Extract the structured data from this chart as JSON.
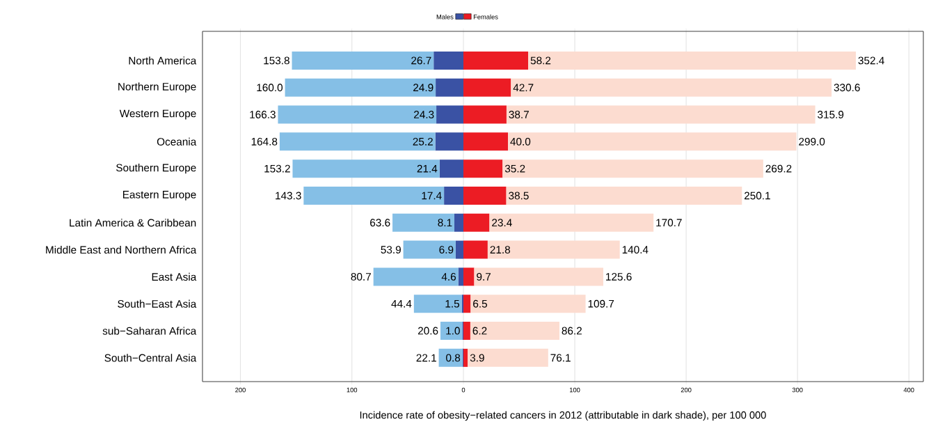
{
  "chart_data": [
    {
      "type": "bar",
      "orientation": "horizontal",
      "stacked": true,
      "categories": [
        "North America",
        "Northern Europe",
        "Western Europe",
        "Oceania",
        "Southern Europe",
        "Eastern Europe",
        "Latin America & Caribbean",
        "Middle East and Northern Africa",
        "East Asia",
        "South−East Asia",
        "sub−Saharan Africa",
        "South−Central Asia"
      ],
      "series": [
        {
          "name": "Males",
          "color": "#3a52a4",
          "values": [
            26.7,
            24.9,
            24.3,
            25.2,
            21.4,
            17.4,
            8.1,
            6.9,
            4.6,
            1.5,
            1.0,
            0.8
          ],
          "value_labels": [
            "26.7",
            "24.9",
            "24.3",
            "25.2",
            "21.4",
            "17.4",
            "8.1",
            "6.9",
            "4.6",
            "1.5",
            "1.0",
            "0.8"
          ]
        },
        {
          "color": "#85bfe6",
          "values": [
            127.1,
            135.1,
            142.0,
            139.6,
            131.8,
            125.9,
            55.5,
            47.0,
            76.1,
            42.9,
            19.6,
            21.3
          ]
        }
      ],
      "totals": [
        "153.8",
        "160.0",
        "166.3",
        "164.8",
        "153.2",
        "143.3",
        "63.6",
        "53.9",
        "80.7",
        "44.4",
        "20.6",
        "22.1"
      ],
      "xlim": [
        234,
        0
      ],
      "xticks": [
        200,
        100,
        0
      ],
      "grid": "x",
      "legend": "top"
    },
    {
      "type": "bar",
      "orientation": "horizontal",
      "stacked": true,
      "xlabel": "Incidence rate of obesity−related cancers in 2012 (attributable in dark shade), per 100 000",
      "categories": [
        null,
        null,
        null,
        null,
        null,
        null,
        null,
        null,
        null,
        null,
        null,
        null
      ],
      "series": [
        {
          "name": "Females",
          "color": "#ec1c24",
          "values": [
            58.2,
            42.7,
            38.7,
            40.0,
            35.2,
            38.5,
            23.4,
            21.8,
            9.7,
            6.5,
            6.2,
            3.9
          ],
          "value_labels": [
            "58.2",
            "42.7",
            "38.7",
            "40.0",
            "35.2",
            "38.5",
            "23.4",
            "21.8",
            "9.7",
            "6.5",
            "6.2",
            "3.9"
          ]
        },
        {
          "color": "#fcdcd0",
          "values": [
            294.2,
            287.9,
            277.2,
            259.0,
            234.0,
            211.6,
            147.3,
            118.6,
            115.9,
            103.2,
            80.0,
            72.2
          ]
        }
      ],
      "totals": [
        "352.4",
        "330.6",
        "315.9",
        "299.0",
        "269.2",
        "250.1",
        "170.7",
        "140.4",
        "125.6",
        "109.7",
        "86.2",
        "76.1"
      ],
      "xlim": [
        0,
        413
      ],
      "xticks": [
        100,
        200,
        300,
        400
      ],
      "tick_labels": "x",
      "grid": "x",
      "legend": "top"
    }
  ]
}
